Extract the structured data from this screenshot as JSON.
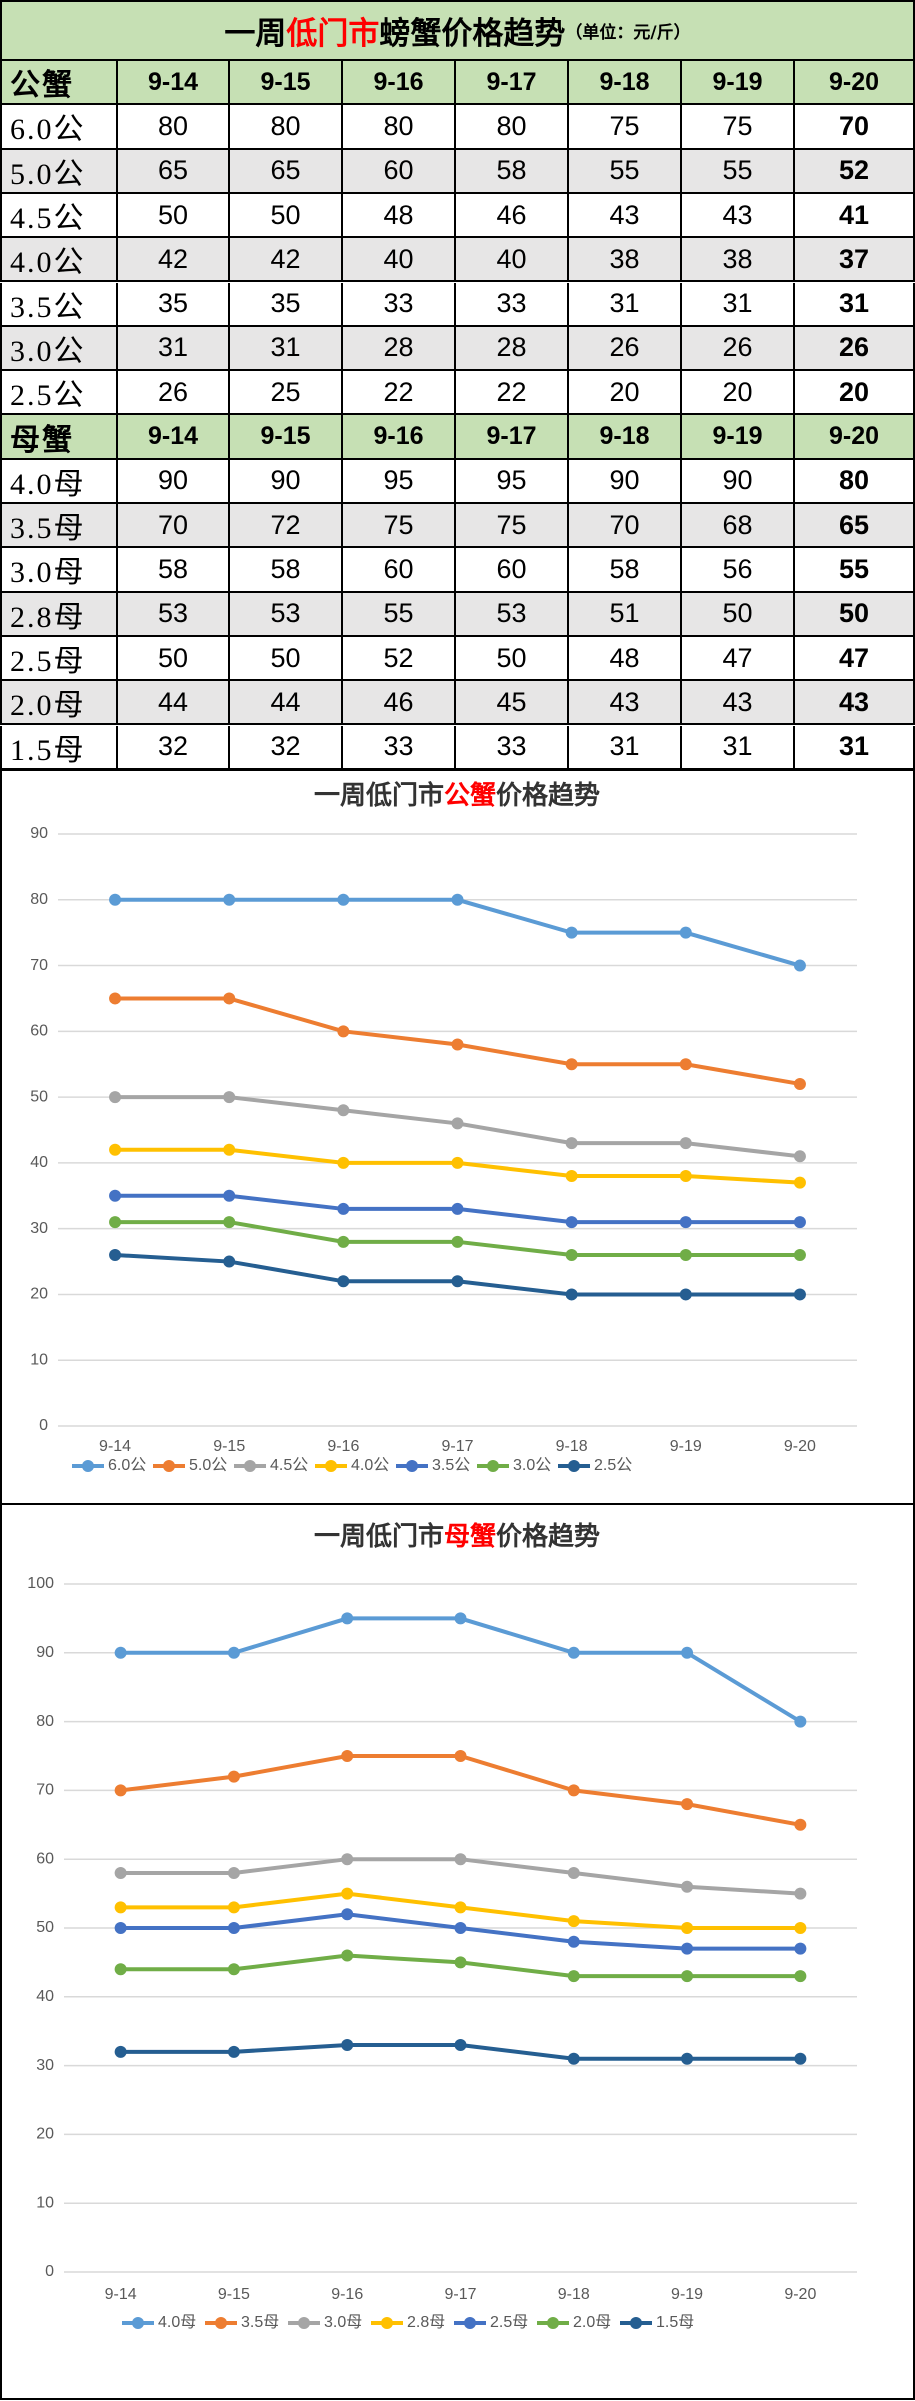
{
  "table": {
    "title_parts": [
      "一周",
      "低门市",
      "螃蟹价格趋势",
      "（单位：元/斤）"
    ],
    "sections": [
      {
        "header": [
          "公蟹",
          "9-14",
          "9-15",
          "9-16",
          "9-17",
          "9-18",
          "9-19",
          "9-20"
        ],
        "rows": [
          [
            "6.0公",
            "80",
            "80",
            "80",
            "80",
            "75",
            "75",
            "70"
          ],
          [
            "5.0公",
            "65",
            "65",
            "60",
            "58",
            "55",
            "55",
            "52"
          ],
          [
            "4.5公",
            "50",
            "50",
            "48",
            "46",
            "43",
            "43",
            "41"
          ],
          [
            "4.0公",
            "42",
            "42",
            "40",
            "40",
            "38",
            "38",
            "37"
          ],
          [
            "3.5公",
            "35",
            "35",
            "33",
            "33",
            "31",
            "31",
            "31"
          ],
          [
            "3.0公",
            "31",
            "31",
            "28",
            "28",
            "26",
            "26",
            "26"
          ],
          [
            "2.5公",
            "26",
            "25",
            "22",
            "22",
            "20",
            "20",
            "20"
          ]
        ]
      },
      {
        "header": [
          "母蟹",
          "9-14",
          "9-15",
          "9-16",
          "9-17",
          "9-18",
          "9-19",
          "9-20"
        ],
        "rows": [
          [
            "4.0母",
            "90",
            "90",
            "95",
            "95",
            "90",
            "90",
            "80"
          ],
          [
            "3.5母",
            "70",
            "72",
            "75",
            "75",
            "70",
            "68",
            "65"
          ],
          [
            "3.0母",
            "58",
            "58",
            "60",
            "60",
            "58",
            "56",
            "55"
          ],
          [
            "2.8母",
            "53",
            "53",
            "55",
            "53",
            "51",
            "50",
            "50"
          ],
          [
            "2.5母",
            "50",
            "50",
            "52",
            "50",
            "48",
            "47",
            "47"
          ],
          [
            "2.0母",
            "44",
            "44",
            "46",
            "45",
            "43",
            "43",
            "43"
          ],
          [
            "1.5母",
            "32",
            "32",
            "33",
            "33",
            "31",
            "31",
            "31"
          ]
        ]
      }
    ]
  },
  "chart_data": [
    {
      "type": "line",
      "title_parts": [
        "一周低门市",
        "公蟹",
        "价格趋势"
      ],
      "categories": [
        "9-14",
        "9-15",
        "9-16",
        "9-17",
        "9-18",
        "9-19",
        "9-20"
      ],
      "ylim": [
        0,
        90
      ],
      "yticks": [
        0,
        10,
        20,
        30,
        40,
        50,
        60,
        70,
        80,
        90
      ],
      "grid": true,
      "legend": "bottom",
      "series": [
        {
          "name": "6.0公",
          "color": "#5b9bd5",
          "values": [
            80,
            80,
            80,
            80,
            75,
            75,
            70
          ]
        },
        {
          "name": "5.0公",
          "color": "#ed7d31",
          "values": [
            65,
            65,
            60,
            58,
            55,
            55,
            52
          ]
        },
        {
          "name": "4.5公",
          "color": "#a5a5a5",
          "values": [
            50,
            50,
            48,
            46,
            43,
            43,
            41
          ]
        },
        {
          "name": "4.0公",
          "color": "#ffc000",
          "values": [
            42,
            42,
            40,
            40,
            38,
            38,
            37
          ]
        },
        {
          "name": "3.5公",
          "color": "#4472c4",
          "values": [
            35,
            35,
            33,
            33,
            31,
            31,
            31
          ]
        },
        {
          "name": "3.0公",
          "color": "#70ad47",
          "values": [
            31,
            31,
            28,
            28,
            26,
            26,
            26
          ]
        },
        {
          "name": "2.5公",
          "color": "#255e91",
          "values": [
            26,
            25,
            22,
            22,
            20,
            20,
            20
          ]
        }
      ]
    },
    {
      "type": "line",
      "title_parts": [
        "一周低门市",
        "母蟹",
        "价格趋势"
      ],
      "categories": [
        "9-14",
        "9-15",
        "9-16",
        "9-17",
        "9-18",
        "9-19",
        "9-20"
      ],
      "ylim": [
        0,
        100
      ],
      "yticks": [
        0,
        10,
        20,
        30,
        40,
        50,
        60,
        70,
        80,
        90,
        100
      ],
      "grid": true,
      "legend": "bottom",
      "series": [
        {
          "name": "4.0母",
          "color": "#5b9bd5",
          "values": [
            90,
            90,
            95,
            95,
            90,
            90,
            80
          ]
        },
        {
          "name": "3.5母",
          "color": "#ed7d31",
          "values": [
            70,
            72,
            75,
            75,
            70,
            68,
            65
          ]
        },
        {
          "name": "3.0母",
          "color": "#a5a5a5",
          "values": [
            58,
            58,
            60,
            60,
            58,
            56,
            55
          ]
        },
        {
          "name": "2.8母",
          "color": "#ffc000",
          "values": [
            53,
            53,
            55,
            53,
            51,
            50,
            50
          ]
        },
        {
          "name": "2.5母",
          "color": "#4472c4",
          "values": [
            50,
            50,
            52,
            50,
            48,
            47,
            47
          ]
        },
        {
          "name": "2.0母",
          "color": "#70ad47",
          "values": [
            44,
            44,
            46,
            45,
            43,
            43,
            43
          ]
        },
        {
          "name": "1.5母",
          "color": "#255e91",
          "values": [
            32,
            32,
            33,
            33,
            31,
            31,
            31
          ]
        }
      ]
    }
  ]
}
